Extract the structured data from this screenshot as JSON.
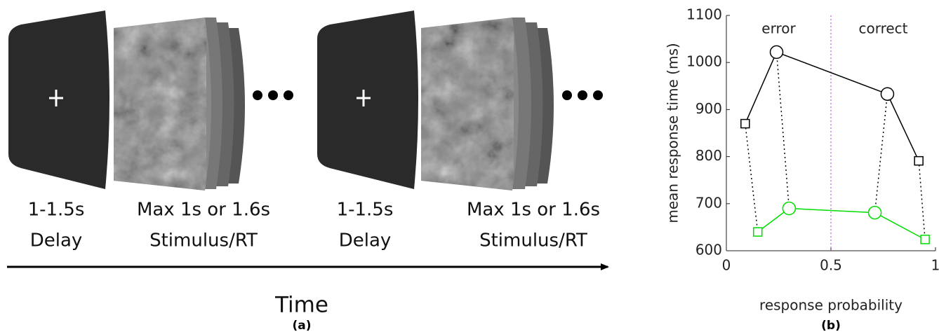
{
  "panel_a": {
    "stages": [
      {
        "duration": "1-1.5s",
        "name": "Delay"
      },
      {
        "duration": "Max 1s or 1.6s",
        "name": "Stimulus/RT"
      },
      {
        "duration": "1-1.5s",
        "name": "Delay"
      },
      {
        "duration": "Max 1s or 1.6s",
        "name": "Stimulus/RT"
      }
    ],
    "axis_label": "Time",
    "caption": "(a)"
  },
  "chart_data": {
    "type": "line",
    "xlabel": "response probability",
    "ylabel": "mean response time (ms)",
    "xlim": [
      0,
      1
    ],
    "xticks": [
      0,
      0.5,
      1
    ],
    "ylim": [
      600,
      1100
    ],
    "yticks": [
      600,
      700,
      800,
      900,
      1000,
      1100
    ],
    "annotations": [
      "error",
      "correct"
    ],
    "divider_x": 0.5,
    "divider_color": "#a040c0",
    "markers": [
      "square",
      "circle",
      "circle",
      "square"
    ],
    "series": [
      {
        "color": "#000000",
        "x": [
          0.09,
          0.24,
          0.77,
          0.92
        ],
        "values": [
          870,
          1022,
          933,
          791
        ]
      },
      {
        "color": "#00dd00",
        "x": [
          0.15,
          0.3,
          0.71,
          0.95
        ],
        "values": [
          640,
          690,
          681,
          624
        ]
      }
    ],
    "caption": "(b)"
  }
}
